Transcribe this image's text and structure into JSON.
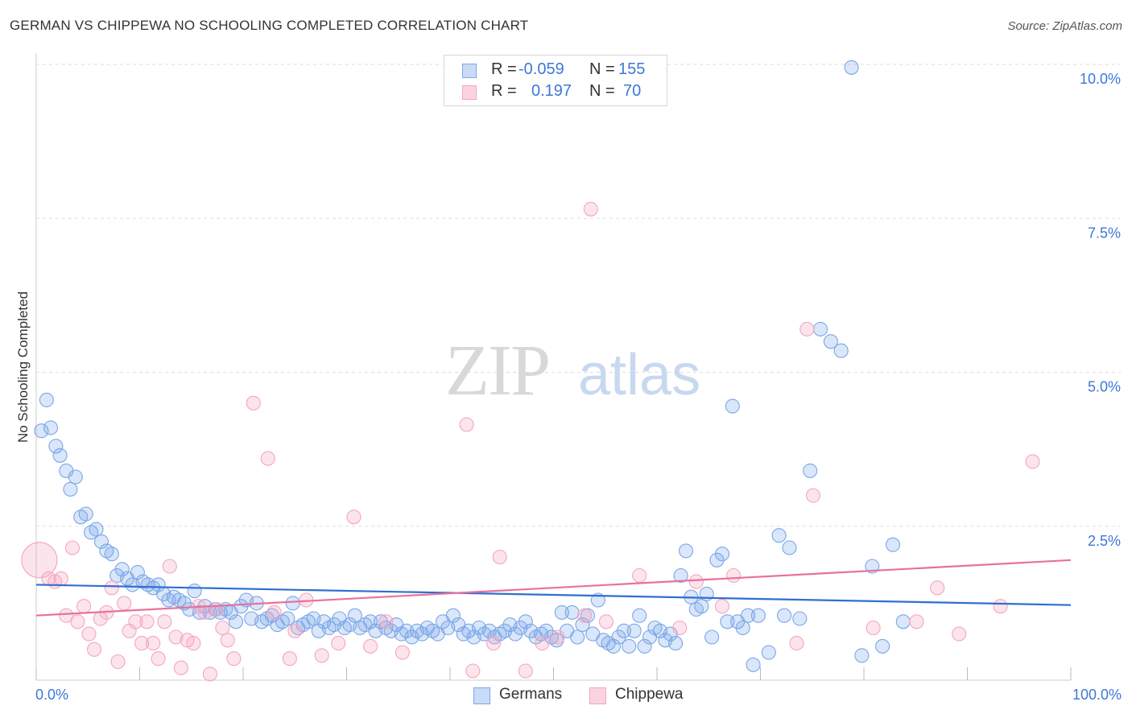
{
  "chart_data": {
    "type": "scatter",
    "title": "GERMAN VS CHIPPEWA NO SCHOOLING COMPLETED CORRELATION CHART",
    "source": "Source: ZipAtlas.com",
    "xlabel": "",
    "ylabel": "No Schooling Completed",
    "xlim": [
      0,
      100
    ],
    "ylim": [
      0,
      10.5
    ],
    "x_tick_labels": {
      "left": "0.0%",
      "right": "100.0%"
    },
    "y_ticks": [
      {
        "value": 2.5,
        "label": "2.5%"
      },
      {
        "value": 5.0,
        "label": "5.0%"
      },
      {
        "value": 7.5,
        "label": "7.5%"
      },
      {
        "value": 10.0,
        "label": "10.0%"
      }
    ],
    "grid": true,
    "watermark": {
      "zip": "ZIP",
      "atlas": "atlas"
    },
    "legend": {
      "position": "top-center",
      "rows": [
        {
          "r_label": "R =",
          "r_value": "-0.059",
          "n_label": "N =",
          "n_value": "155"
        },
        {
          "r_label": "R =",
          "r_value": "0.197",
          "n_label": "N =",
          "n_value": "70"
        }
      ]
    },
    "series": [
      {
        "name": "Germans",
        "color": "#7aa7e8",
        "trend": {
          "x": [
            0,
            100
          ],
          "y": [
            1.55,
            1.22
          ]
        },
        "points": [
          [
            0.5,
            4.05
          ],
          [
            1.0,
            4.55
          ],
          [
            1.4,
            4.1
          ],
          [
            1.9,
            3.8
          ],
          [
            2.3,
            3.65
          ],
          [
            2.9,
            3.4
          ],
          [
            3.3,
            3.1
          ],
          [
            3.8,
            3.3
          ],
          [
            4.3,
            2.65
          ],
          [
            4.8,
            2.7
          ],
          [
            5.3,
            2.4
          ],
          [
            5.8,
            2.45
          ],
          [
            6.3,
            2.25
          ],
          [
            6.8,
            2.1
          ],
          [
            7.3,
            2.05
          ],
          [
            7.8,
            1.7
          ],
          [
            8.3,
            1.8
          ],
          [
            8.8,
            1.65
          ],
          [
            9.3,
            1.55
          ],
          [
            9.8,
            1.75
          ],
          [
            10.3,
            1.6
          ],
          [
            10.8,
            1.55
          ],
          [
            11.3,
            1.5
          ],
          [
            11.8,
            1.55
          ],
          [
            12.3,
            1.4
          ],
          [
            12.8,
            1.3
          ],
          [
            13.3,
            1.35
          ],
          [
            13.8,
            1.3
          ],
          [
            14.3,
            1.25
          ],
          [
            14.8,
            1.15
          ],
          [
            15.3,
            1.45
          ],
          [
            15.8,
            1.1
          ],
          [
            16.3,
            1.2
          ],
          [
            16.8,
            1.1
          ],
          [
            17.3,
            1.15
          ],
          [
            17.8,
            1.1
          ],
          [
            18.3,
            1.15
          ],
          [
            18.8,
            1.1
          ],
          [
            19.3,
            0.95
          ],
          [
            19.8,
            1.2
          ],
          [
            20.3,
            1.3
          ],
          [
            20.8,
            1.0
          ],
          [
            21.3,
            1.25
          ],
          [
            21.8,
            0.95
          ],
          [
            22.3,
            1.0
          ],
          [
            22.8,
            1.05
          ],
          [
            23.3,
            0.9
          ],
          [
            23.8,
            0.95
          ],
          [
            24.3,
            1.0
          ],
          [
            24.8,
            1.25
          ],
          [
            25.3,
            0.85
          ],
          [
            25.8,
            0.9
          ],
          [
            26.3,
            0.95
          ],
          [
            26.8,
            1.0
          ],
          [
            27.3,
            0.8
          ],
          [
            27.8,
            0.95
          ],
          [
            28.3,
            0.85
          ],
          [
            28.8,
            0.9
          ],
          [
            29.3,
            1.0
          ],
          [
            29.8,
            0.85
          ],
          [
            30.3,
            0.9
          ],
          [
            30.8,
            1.05
          ],
          [
            31.3,
            0.85
          ],
          [
            31.8,
            0.9
          ],
          [
            32.3,
            0.95
          ],
          [
            32.8,
            0.8
          ],
          [
            33.3,
            0.95
          ],
          [
            33.8,
            0.85
          ],
          [
            34.3,
            0.8
          ],
          [
            34.8,
            0.9
          ],
          [
            35.3,
            0.75
          ],
          [
            35.8,
            0.8
          ],
          [
            36.3,
            0.7
          ],
          [
            36.8,
            0.8
          ],
          [
            37.3,
            0.75
          ],
          [
            37.8,
            0.85
          ],
          [
            38.3,
            0.8
          ],
          [
            38.8,
            0.75
          ],
          [
            39.3,
            0.95
          ],
          [
            39.8,
            0.85
          ],
          [
            40.3,
            1.05
          ],
          [
            40.8,
            0.9
          ],
          [
            41.3,
            0.75
          ],
          [
            41.8,
            0.8
          ],
          [
            42.3,
            0.7
          ],
          [
            42.8,
            0.85
          ],
          [
            43.3,
            0.75
          ],
          [
            43.8,
            0.8
          ],
          [
            44.3,
            0.7
          ],
          [
            44.8,
            0.75
          ],
          [
            45.3,
            0.8
          ],
          [
            45.8,
            0.9
          ],
          [
            46.3,
            0.75
          ],
          [
            46.8,
            0.85
          ],
          [
            47.3,
            0.95
          ],
          [
            47.8,
            0.8
          ],
          [
            48.3,
            0.7
          ],
          [
            48.8,
            0.75
          ],
          [
            49.3,
            0.8
          ],
          [
            49.8,
            0.7
          ],
          [
            50.3,
            0.65
          ],
          [
            50.8,
            1.1
          ],
          [
            51.3,
            0.8
          ],
          [
            51.8,
            1.1
          ],
          [
            52.3,
            0.7
          ],
          [
            52.8,
            0.9
          ],
          [
            53.3,
            1.05
          ],
          [
            53.8,
            0.75
          ],
          [
            54.3,
            1.3
          ],
          [
            54.8,
            0.65
          ],
          [
            55.3,
            0.6
          ],
          [
            55.8,
            0.55
          ],
          [
            56.3,
            0.7
          ],
          [
            56.8,
            0.8
          ],
          [
            57.3,
            0.55
          ],
          [
            57.8,
            0.8
          ],
          [
            58.3,
            1.05
          ],
          [
            58.8,
            0.55
          ],
          [
            59.3,
            0.7
          ],
          [
            59.8,
            0.85
          ],
          [
            60.3,
            0.8
          ],
          [
            60.8,
            0.65
          ],
          [
            61.3,
            0.75
          ],
          [
            61.8,
            0.6
          ],
          [
            62.3,
            1.7
          ],
          [
            62.8,
            2.1
          ],
          [
            63.3,
            1.35
          ],
          [
            63.8,
            1.15
          ],
          [
            64.3,
            1.2
          ],
          [
            64.8,
            1.4
          ],
          [
            65.3,
            0.7
          ],
          [
            65.8,
            1.95
          ],
          [
            66.3,
            2.05
          ],
          [
            66.8,
            0.95
          ],
          [
            67.3,
            4.45
          ],
          [
            67.8,
            0.95
          ],
          [
            68.3,
            0.85
          ],
          [
            68.8,
            1.05
          ],
          [
            69.3,
            0.25
          ],
          [
            69.8,
            1.05
          ],
          [
            70.8,
            0.45
          ],
          [
            71.8,
            2.35
          ],
          [
            72.3,
            1.05
          ],
          [
            72.8,
            2.15
          ],
          [
            73.8,
            1.0
          ],
          [
            74.8,
            3.4
          ],
          [
            75.8,
            5.7
          ],
          [
            76.8,
            5.5
          ],
          [
            77.8,
            5.35
          ],
          [
            78.8,
            9.95
          ],
          [
            79.8,
            0.4
          ],
          [
            80.8,
            1.85
          ],
          [
            81.8,
            0.55
          ],
          [
            82.8,
            2.2
          ],
          [
            83.8,
            0.95
          ]
        ]
      },
      {
        "name": "Chippewa",
        "color": "#f4a6bf",
        "trend": {
          "x": [
            0,
            100
          ],
          "y": [
            1.05,
            1.95
          ]
        },
        "points": [
          [
            0.3,
            1.95
          ],
          [
            1.2,
            1.65
          ],
          [
            1.8,
            1.6
          ],
          [
            2.4,
            1.65
          ],
          [
            2.9,
            1.05
          ],
          [
            3.5,
            2.15
          ],
          [
            4.0,
            0.95
          ],
          [
            4.6,
            1.2
          ],
          [
            5.1,
            0.75
          ],
          [
            5.6,
            0.5
          ],
          [
            6.2,
            1.0
          ],
          [
            6.8,
            1.1
          ],
          [
            7.3,
            1.5
          ],
          [
            7.9,
            0.3
          ],
          [
            8.5,
            1.25
          ],
          [
            9.0,
            0.8
          ],
          [
            9.6,
            0.95
          ],
          [
            10.2,
            0.6
          ],
          [
            10.7,
            0.95
          ],
          [
            11.3,
            0.6
          ],
          [
            11.8,
            0.35
          ],
          [
            12.4,
            0.95
          ],
          [
            12.9,
            1.85
          ],
          [
            13.5,
            0.7
          ],
          [
            14.0,
            0.2
          ],
          [
            14.6,
            0.65
          ],
          [
            15.2,
            0.6
          ],
          [
            15.7,
            1.2
          ],
          [
            16.3,
            1.1
          ],
          [
            16.8,
            0.1
          ],
          [
            17.4,
            1.15
          ],
          [
            18.0,
            0.85
          ],
          [
            18.5,
            0.65
          ],
          [
            19.1,
            0.35
          ],
          [
            21.0,
            4.5
          ],
          [
            22.4,
            3.6
          ],
          [
            23.0,
            1.1
          ],
          [
            24.5,
            0.35
          ],
          [
            25.0,
            0.8
          ],
          [
            26.1,
            1.3
          ],
          [
            27.6,
            0.4
          ],
          [
            29.2,
            0.6
          ],
          [
            30.7,
            2.65
          ],
          [
            32.3,
            0.55
          ],
          [
            33.8,
            0.95
          ],
          [
            35.4,
            0.45
          ],
          [
            41.6,
            4.15
          ],
          [
            42.2,
            0.15
          ],
          [
            44.2,
            0.6
          ],
          [
            44.8,
            2.0
          ],
          [
            47.3,
            0.15
          ],
          [
            48.9,
            0.6
          ],
          [
            50.4,
            0.7
          ],
          [
            53.0,
            1.05
          ],
          [
            53.6,
            7.65
          ],
          [
            55.1,
            0.95
          ],
          [
            58.3,
            1.7
          ],
          [
            62.2,
            0.85
          ],
          [
            63.8,
            1.6
          ],
          [
            66.3,
            1.2
          ],
          [
            67.4,
            1.7
          ],
          [
            73.5,
            0.6
          ],
          [
            74.5,
            5.7
          ],
          [
            75.1,
            3.0
          ],
          [
            80.9,
            0.85
          ],
          [
            85.1,
            0.95
          ],
          [
            87.1,
            1.5
          ],
          [
            89.2,
            0.75
          ],
          [
            93.2,
            1.2
          ],
          [
            96.3,
            3.55
          ]
        ]
      }
    ]
  }
}
